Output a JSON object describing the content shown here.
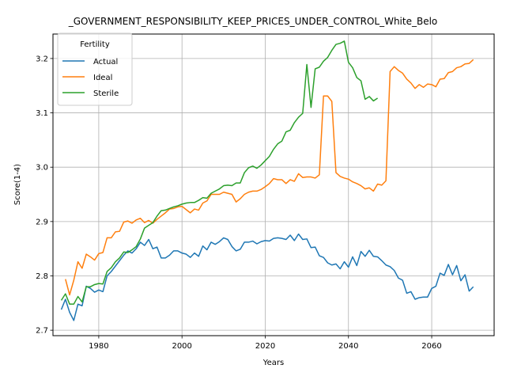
{
  "chart_data": {
    "type": "line",
    "title": "_GOVERNMENT_RESPONSIBILITY_KEEP_PRICES_UNDER_CONTROL_White_Belo",
    "xlabel": "Years",
    "ylabel": "Score(1-4)",
    "xlim": [
      1969,
      2075
    ],
    "ylim": [
      2.69,
      3.245
    ],
    "xticks": [
      1980,
      2000,
      2020,
      2040,
      2060
    ],
    "yticks": [
      2.7,
      2.8,
      2.9,
      3.0,
      3.1,
      3.2
    ],
    "ytick_labels": [
      "2.7",
      "2.8",
      "2.9",
      "3.0",
      "3.1",
      "3.2"
    ],
    "grid": true,
    "legend": {
      "title": "Fertility",
      "position": "top-left"
    },
    "series": [
      {
        "name": "Actual",
        "color": "#1f77b4",
        "x": [
          1971,
          1972,
          1973,
          1974,
          1975,
          1976,
          1977,
          1978,
          1979,
          1980,
          1981,
          1982,
          1983,
          1984,
          1985,
          1986,
          1987,
          1988,
          1989,
          1990,
          1991,
          1992,
          1993,
          1994,
          1995,
          1996,
          1997,
          1998,
          1999,
          2000,
          2001,
          2002,
          2003,
          2004,
          2005,
          2006,
          2007,
          2008,
          2009,
          2010,
          2011,
          2012,
          2013,
          2014,
          2015,
          2016,
          2017,
          2018,
          2019,
          2020,
          2021,
          2022,
          2023,
          2024,
          2025,
          2026,
          2027,
          2028,
          2029,
          2030,
          2031,
          2032,
          2033,
          2034,
          2035,
          2036,
          2037,
          2038,
          2039,
          2040,
          2041,
          2042,
          2043,
          2044,
          2045,
          2046,
          2047,
          2048,
          2049,
          2050,
          2051,
          2052,
          2053,
          2054,
          2055,
          2056,
          2057,
          2058,
          2059,
          2060,
          2061,
          2062,
          2063,
          2064,
          2065,
          2066,
          2067,
          2068,
          2069,
          2070
        ],
        "values": [
          2.738,
          2.757,
          2.733,
          2.718,
          2.748,
          2.745,
          2.781,
          2.777,
          2.77,
          2.774,
          2.771,
          2.8,
          2.808,
          2.818,
          2.828,
          2.838,
          2.846,
          2.842,
          2.85,
          2.862,
          2.856,
          2.867,
          2.85,
          2.853,
          2.833,
          2.833,
          2.838,
          2.846,
          2.846,
          2.842,
          2.84,
          2.834,
          2.842,
          2.836,
          2.855,
          2.848,
          2.862,
          2.858,
          2.863,
          2.87,
          2.867,
          2.854,
          2.846,
          2.849,
          2.862,
          2.862,
          2.864,
          2.859,
          2.863,
          2.865,
          2.864,
          2.869,
          2.87,
          2.869,
          2.867,
          2.875,
          2.865,
          2.877,
          2.867,
          2.868,
          2.852,
          2.853,
          2.837,
          2.834,
          2.824,
          2.82,
          2.822,
          2.813,
          2.826,
          2.816,
          2.835,
          2.819,
          2.845,
          2.836,
          2.847,
          2.836,
          2.835,
          2.828,
          2.82,
          2.817,
          2.81,
          2.796,
          2.792,
          2.768,
          2.771,
          2.757,
          2.76,
          2.761,
          2.761,
          2.777,
          2.781,
          2.805,
          2.801,
          2.821,
          2.802,
          2.819,
          2.791,
          2.802,
          2.772,
          2.78
        ]
      },
      {
        "name": "Ideal",
        "color": "#ff7f0e",
        "x": [
          1972,
          1973,
          1974,
          1975,
          1976,
          1977,
          1978,
          1979,
          1980,
          1981,
          1982,
          1983,
          1984,
          1985,
          1986,
          1987,
          1988,
          1989,
          1990,
          1991,
          1992,
          1993,
          1994,
          1995,
          1996,
          1997,
          1998,
          1999,
          2000,
          2001,
          2002,
          2003,
          2004,
          2005,
          2006,
          2007,
          2008,
          2009,
          2010,
          2011,
          2012,
          2013,
          2014,
          2015,
          2016,
          2017,
          2018,
          2019,
          2020,
          2021,
          2022,
          2023,
          2024,
          2025,
          2026,
          2027,
          2028,
          2029,
          2030,
          2031,
          2032,
          2033,
          2034,
          2035,
          2036,
          2037,
          2038,
          2039,
          2040,
          2041,
          2042,
          2043,
          2044,
          2045,
          2046,
          2047,
          2048,
          2049,
          2050,
          2051,
          2052,
          2053,
          2054,
          2055,
          2056,
          2057,
          2058,
          2059,
          2060,
          2061,
          2062,
          2063,
          2064,
          2065,
          2066,
          2067,
          2068,
          2069,
          2070
        ],
        "values": [
          2.794,
          2.765,
          2.792,
          2.826,
          2.814,
          2.84,
          2.835,
          2.829,
          2.841,
          2.843,
          2.87,
          2.87,
          2.881,
          2.882,
          2.899,
          2.901,
          2.897,
          2.903,
          2.906,
          2.898,
          2.902,
          2.897,
          2.904,
          2.91,
          2.916,
          2.923,
          2.924,
          2.927,
          2.928,
          2.922,
          2.916,
          2.923,
          2.921,
          2.934,
          2.938,
          2.95,
          2.95,
          2.95,
          2.954,
          2.952,
          2.95,
          2.936,
          2.942,
          2.95,
          2.954,
          2.956,
          2.956,
          2.959,
          2.964,
          2.97,
          2.979,
          2.977,
          2.977,
          2.97,
          2.977,
          2.974,
          2.988,
          2.981,
          2.982,
          2.982,
          2.98,
          2.986,
          3.131,
          3.131,
          3.121,
          2.99,
          2.983,
          2.98,
          2.978,
          2.973,
          2.97,
          2.966,
          2.96,
          2.962,
          2.956,
          2.969,
          2.967,
          2.975,
          3.176,
          3.185,
          3.178,
          3.173,
          3.162,
          3.155,
          3.145,
          3.152,
          3.147,
          3.153,
          3.152,
          3.148,
          3.162,
          3.163,
          3.174,
          3.176,
          3.183,
          3.185,
          3.19,
          3.191,
          3.198
        ]
      },
      {
        "name": "Sterile",
        "color": "#2ca02c",
        "x": [
          1971,
          1972,
          1973,
          1974,
          1975,
          1976,
          1977,
          1978,
          1979,
          1980,
          1981,
          1982,
          1983,
          1984,
          1985,
          1986,
          1987,
          1988,
          1989,
          1990,
          1991,
          1992,
          1993,
          1994,
          1995,
          1996,
          1997,
          1998,
          1999,
          2000,
          2001,
          2002,
          2003,
          2004,
          2005,
          2006,
          2007,
          2008,
          2009,
          2010,
          2011,
          2012,
          2013,
          2014,
          2015,
          2016,
          2017,
          2018,
          2019,
          2020,
          2021,
          2022,
          2023,
          2024,
          2025,
          2026,
          2027,
          2028,
          2029,
          2030,
          2031,
          2032,
          2033,
          2034,
          2035,
          2036,
          2037,
          2038,
          2039,
          2040,
          2041,
          2042,
          2043,
          2044,
          2045,
          2046,
          2047
        ],
        "values": [
          2.755,
          2.767,
          2.748,
          2.748,
          2.762,
          2.752,
          2.78,
          2.78,
          2.784,
          2.786,
          2.785,
          2.808,
          2.815,
          2.826,
          2.833,
          2.844,
          2.843,
          2.848,
          2.854,
          2.868,
          2.888,
          2.893,
          2.898,
          2.91,
          2.92,
          2.921,
          2.924,
          2.927,
          2.929,
          2.932,
          2.934,
          2.935,
          2.935,
          2.939,
          2.944,
          2.943,
          2.952,
          2.956,
          2.96,
          2.966,
          2.967,
          2.966,
          2.971,
          2.971,
          2.99,
          2.999,
          3.002,
          2.998,
          3.004,
          3.012,
          3.02,
          3.033,
          3.043,
          3.048,
          3.065,
          3.068,
          3.082,
          3.092,
          3.099,
          3.189,
          3.11,
          3.181,
          3.184,
          3.195,
          3.202,
          3.215,
          3.226,
          3.228,
          3.232,
          3.193,
          3.183,
          3.165,
          3.159,
          3.125,
          3.13,
          3.122,
          3.127
        ]
      }
    ]
  }
}
